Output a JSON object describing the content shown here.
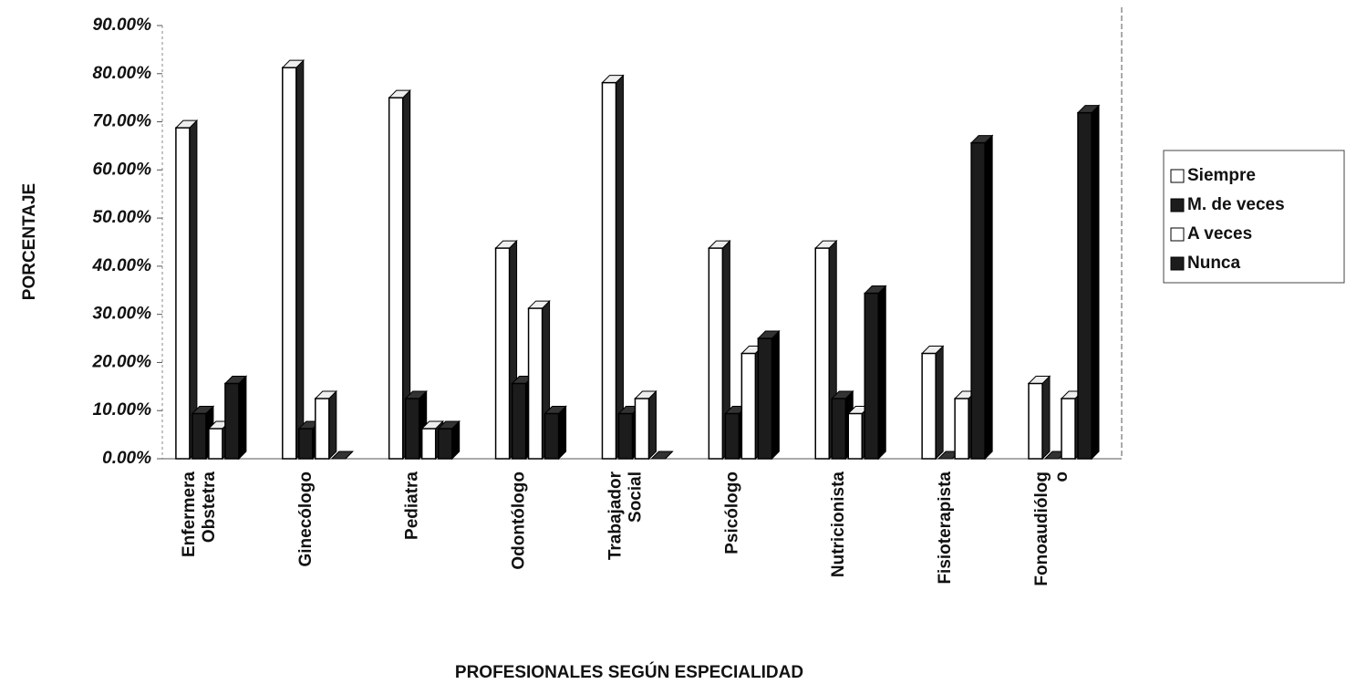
{
  "chart_data": {
    "type": "bar",
    "x_label": "PROFESIONALES SEGÚN ESPECIALIDAD",
    "y_label": "PORCENTAJE",
    "categories": [
      "Enfermera Obstetra",
      "Ginecólogo",
      "Pediatra",
      "Odontólogo",
      "Trabajador Social",
      "Psicólogo",
      "Nutricionista",
      "Fisioterapista",
      "Fonoaudiólog o"
    ],
    "series": [
      {
        "name": "Siempre",
        "color": "#ffffff",
        "values": [
          68.75,
          81.25,
          75,
          43.75,
          78.13,
          43.75,
          43.75,
          21.88,
          15.63
        ]
      },
      {
        "name": "M. de veces",
        "color": "#1c1c1c",
        "values": [
          9.38,
          6.25,
          12.5,
          15.63,
          9.38,
          9.38,
          12.5,
          0,
          0
        ]
      },
      {
        "name": "A veces",
        "color": "#ffffff",
        "values": [
          6.25,
          12.5,
          6.25,
          31.25,
          12.5,
          21.88,
          9.38,
          12.5,
          12.5
        ]
      },
      {
        "name": "Nunca",
        "color": "#1c1c1c",
        "values": [
          15.63,
          0,
          6.25,
          9.38,
          0,
          25,
          34.38,
          65.63,
          71.88
        ]
      }
    ],
    "ylim": [
      0,
      90
    ],
    "yticks": [
      {
        "value": 0,
        "label": "0.00%"
      },
      {
        "value": 10,
        "label": "10.00%"
      },
      {
        "value": 20,
        "label": "20.00%"
      },
      {
        "value": 30,
        "label": "30.00%"
      },
      {
        "value": 40,
        "label": "40.00%"
      },
      {
        "value": 50,
        "label": "50.00%"
      },
      {
        "value": 60,
        "label": "60.00%"
      },
      {
        "value": 70,
        "label": "70.00%"
      },
      {
        "value": 80,
        "label": "80.00%"
      },
      {
        "value": 90,
        "label": "90.00%"
      }
    ],
    "legend": "right"
  }
}
